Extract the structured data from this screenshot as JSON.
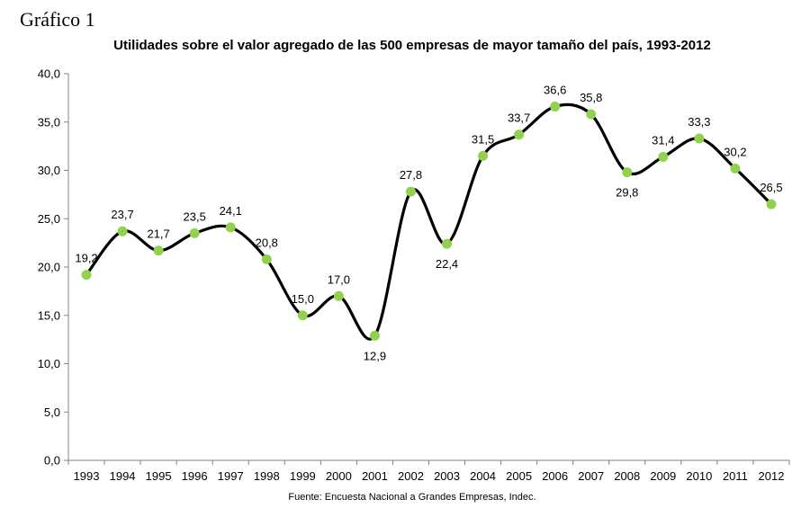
{
  "caption": "Gráfico 1",
  "source": "Fuente: Encuesta Nacional a Grandes Empresas, Indec.",
  "chart_data": {
    "type": "line",
    "title": "Utilidades sobre el valor agregado de las 500 empresas de mayor tamaño del país, 1993-2012",
    "xlabel": "",
    "ylabel": "",
    "x": [
      "1993",
      "1994",
      "1995",
      "1996",
      "1997",
      "1998",
      "1999",
      "2000",
      "2001",
      "2002",
      "2003",
      "2004",
      "2005",
      "2006",
      "2007",
      "2008",
      "2009",
      "2010",
      "2011",
      "2012"
    ],
    "values": [
      19.2,
      23.7,
      21.7,
      23.5,
      24.1,
      20.8,
      15.0,
      17.0,
      12.9,
      27.8,
      22.4,
      31.5,
      33.7,
      36.6,
      35.8,
      29.8,
      31.4,
      33.3,
      30.2,
      26.5
    ],
    "value_labels": [
      "19,2",
      "23,7",
      "21,7",
      "23,5",
      "24,1",
      "20,8",
      "15,0",
      "17,0",
      "12,9",
      "27,8",
      "22,4",
      "31,5",
      "33,7",
      "36,6",
      "35,8",
      "29,8",
      "31,4",
      "33,3",
      "30,2",
      "26,5"
    ],
    "label_below": [
      false,
      false,
      false,
      false,
      false,
      false,
      false,
      false,
      true,
      false,
      true,
      false,
      false,
      false,
      false,
      true,
      false,
      false,
      false,
      false
    ],
    "ylim": [
      0,
      40
    ],
    "yticks": [
      "0,0",
      "5,0",
      "10,0",
      "15,0",
      "20,0",
      "25,0",
      "30,0",
      "35,0",
      "40,0"
    ],
    "ytick_values": [
      0,
      5,
      10,
      15,
      20,
      25,
      30,
      35,
      40
    ],
    "grid": false,
    "legend": "none",
    "line_color": "#000000",
    "marker_color": "#92D050"
  }
}
